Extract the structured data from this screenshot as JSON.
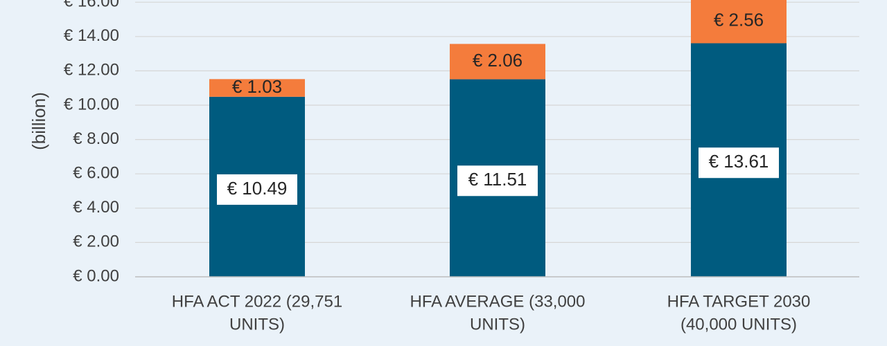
{
  "chart_data": {
    "type": "bar",
    "stacked": true,
    "ylabel": "(billion)",
    "ylim": [
      0,
      16
    ],
    "ytick_step": 2,
    "ytick_labels": [
      "€ 0.00",
      "€ 2.00",
      "€ 4.00",
      "€ 6.00",
      "€ 8.00",
      "€ 10.00",
      "€ 12.00",
      "€ 14.00",
      "€ 16.00"
    ],
    "categories": [
      [
        "HFA ACT 2022 (29,751",
        "UNITS)"
      ],
      [
        "HFA AVERAGE (33,000",
        "UNITS)"
      ],
      [
        "HFA TARGET 2030",
        "(40,000 UNITS)"
      ]
    ],
    "series": [
      {
        "values": [
          10.49,
          11.51,
          13.61
        ],
        "labels": [
          "€ 10.49",
          "€ 11.51",
          "€ 13.61"
        ],
        "color": "#005b7f"
      },
      {
        "values": [
          1.03,
          2.06,
          2.56
        ],
        "labels": [
          "€ 1.03",
          "€ 2.06",
          "€ 2.56"
        ],
        "color": "#f47c3c"
      }
    ],
    "grid": true,
    "background": "#eaf2f9",
    "gridline_color": "#d6d6d6"
  }
}
